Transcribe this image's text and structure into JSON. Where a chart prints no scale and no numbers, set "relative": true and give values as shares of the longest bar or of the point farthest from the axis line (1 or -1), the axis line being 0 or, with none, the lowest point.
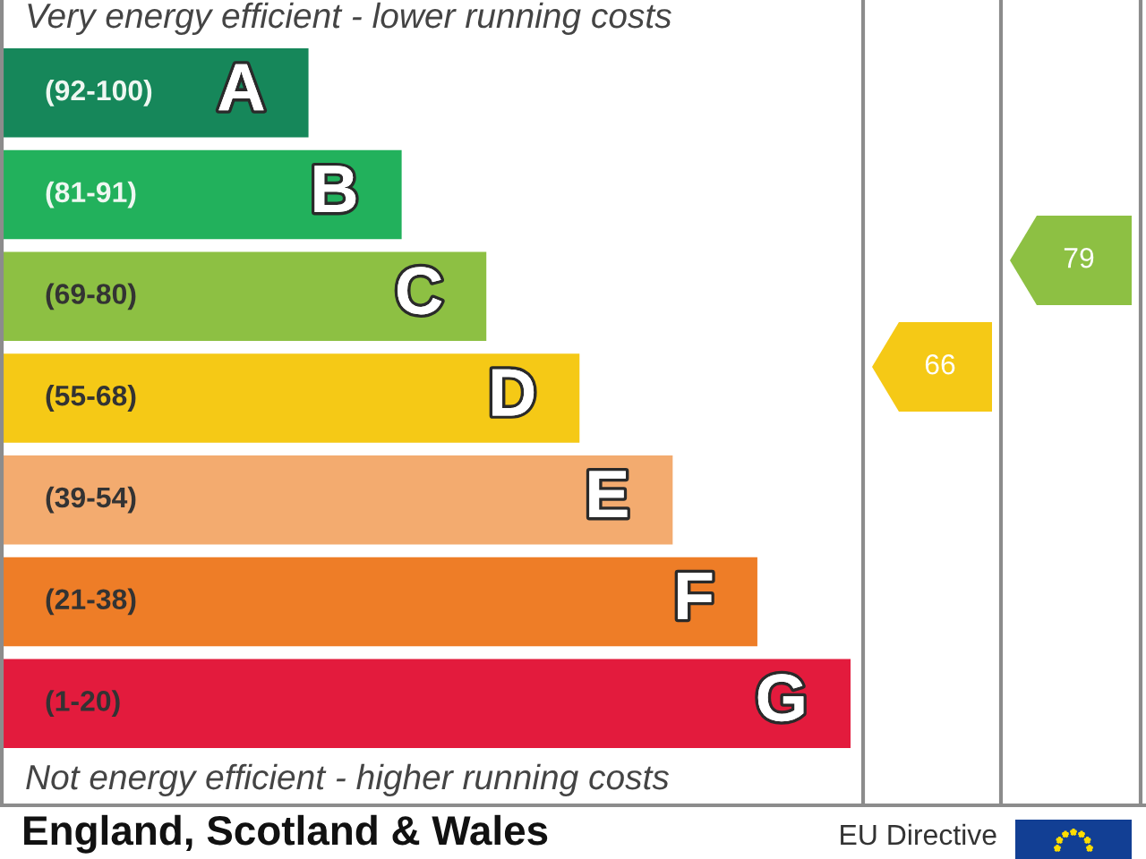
{
  "chart_data": {
    "type": "bar",
    "orientation": "horizontal",
    "relative": true,
    "categories": [
      "A",
      "B",
      "C",
      "D",
      "E",
      "F",
      "G"
    ],
    "values": [
      0.36,
      0.47,
      0.57,
      0.68,
      0.79,
      0.89,
      1
    ],
    "colors": [
      "#16875a",
      "#22b15c",
      "#8dc043",
      "#f5c916",
      "#f3ab6f",
      "#ee7d27",
      "#e31b3d"
    ],
    "annotations": [
      "Very energy efficient - lower running costs",
      "Not energy efficient - higher running costs",
      "England, Scotland & Wales",
      "EU Directive",
      "(92-100)",
      "(81-91)",
      "(69-80)",
      "(55-68)",
      "(39-54)",
      "(21-38)",
      "(1-20)",
      "66",
      "79"
    ]
  }
}
